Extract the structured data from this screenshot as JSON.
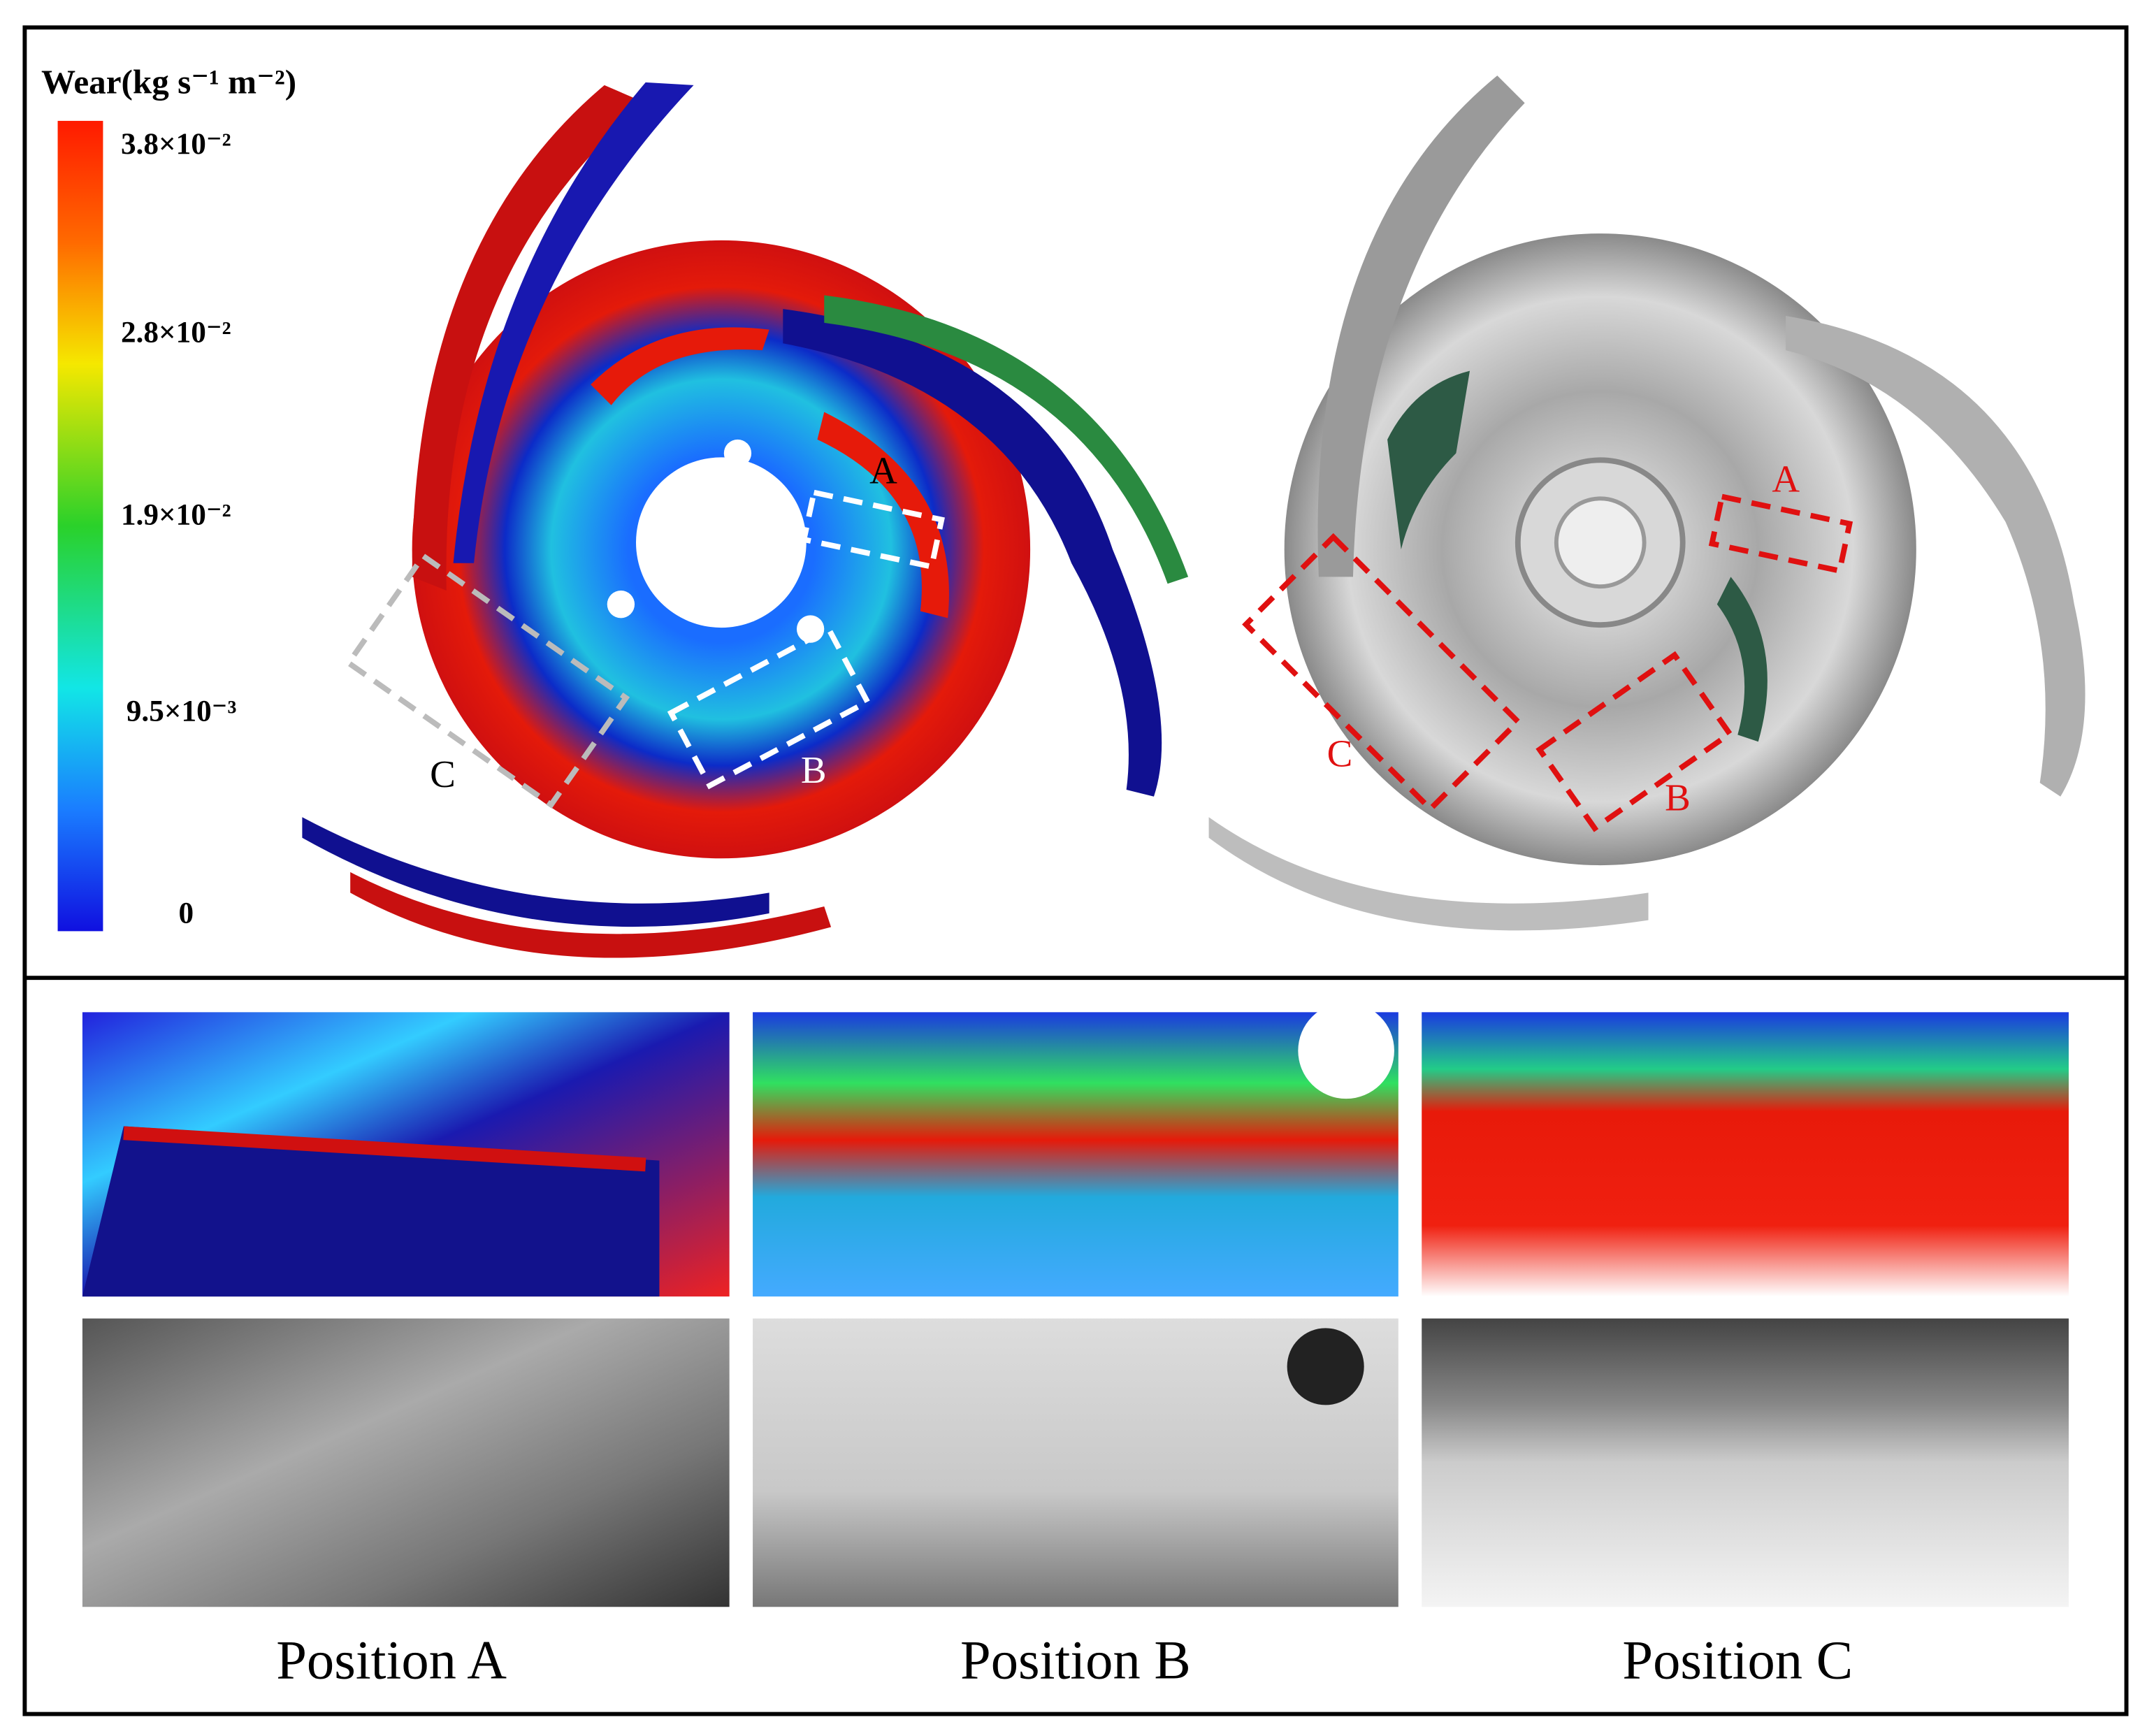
{
  "colorbar": {
    "title": "Wear(kg s⁻¹ m⁻²)",
    "labels": [
      "3.8×10⁻²",
      "2.8×10⁻²",
      "1.9×10⁻²",
      "9.5×10⁻³",
      "0"
    ]
  },
  "simulation": {
    "markers": [
      "A",
      "B",
      "C"
    ]
  },
  "photo": {
    "markers": [
      "A",
      "B",
      "C"
    ]
  },
  "panels": {
    "captions": [
      "Position A",
      "Position B",
      "Position C"
    ]
  }
}
